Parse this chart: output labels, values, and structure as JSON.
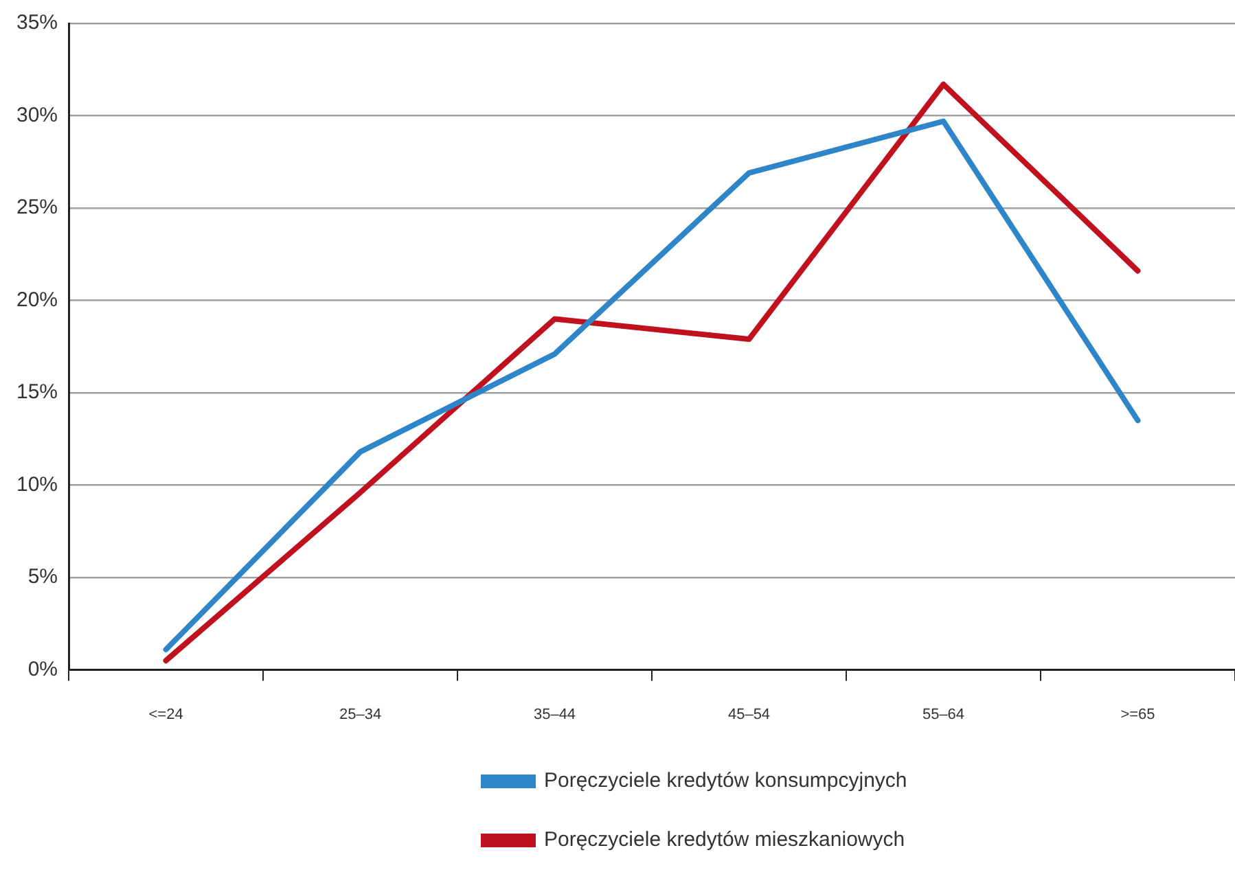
{
  "chart_data": {
    "type": "line",
    "categories": [
      "<=24",
      "25–34",
      "35–44",
      "45–54",
      "55–64",
      ">=65"
    ],
    "series": [
      {
        "name": "Poręczyciele kredytów konsumpcyjnych",
        "color": "#2e86c8",
        "values": [
          1.1,
          11.8,
          17.1,
          26.9,
          29.7,
          13.5
        ]
      },
      {
        "name": "Poręczyciele kredytów mieszkaniowych",
        "color": "#c0121e",
        "values": [
          0.5,
          9.6,
          19.0,
          17.9,
          31.7,
          21.6
        ]
      }
    ],
    "ylim": [
      0,
      35
    ],
    "yticks": [
      {
        "value": 0,
        "label": "0%"
      },
      {
        "value": 5,
        "label": "5%"
      },
      {
        "value": 10,
        "label": "10%"
      },
      {
        "value": 15,
        "label": "15%"
      },
      {
        "value": 20,
        "label": "20%"
      },
      {
        "value": 25,
        "label": "25%"
      },
      {
        "value": 30,
        "label": "30%"
      },
      {
        "value": 35,
        "label": "35%"
      }
    ],
    "grid": "y",
    "legend": "bottom",
    "marker": "none",
    "line_style": "solid"
  }
}
